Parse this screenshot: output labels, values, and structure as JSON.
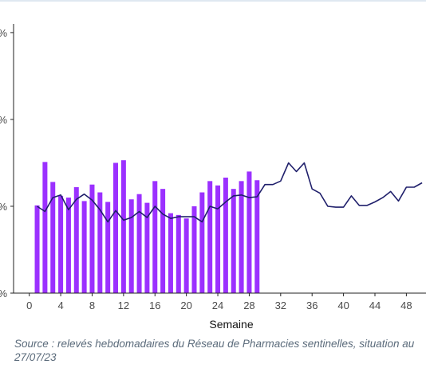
{
  "chart_data": {
    "type": "bar",
    "title": "",
    "xlabel": "Semaine",
    "ylabel": "",
    "x_ticks": [
      0,
      4,
      8,
      12,
      16,
      20,
      24,
      28,
      32,
      36,
      40,
      44,
      48
    ],
    "y_tick_labels": [
      "%",
      "%",
      "%",
      "%"
    ],
    "xlim": [
      -2,
      50.5
    ],
    "ylim": [
      0,
      3.1
    ],
    "grid": false,
    "series": [
      {
        "type": "bar",
        "color": "#9b30ff",
        "x": [
          1,
          2,
          3,
          4,
          5,
          6,
          7,
          8,
          9,
          10,
          11,
          12,
          13,
          14,
          15,
          16,
          17,
          18,
          19,
          20,
          21,
          22,
          23,
          24,
          25,
          26,
          27,
          28,
          29
        ],
        "values": [
          1.01,
          1.51,
          1.28,
          1.12,
          1.1,
          1.22,
          1.06,
          1.25,
          1.16,
          1.05,
          1.5,
          1.53,
          1.08,
          1.14,
          1.04,
          1.29,
          1.2,
          0.92,
          0.9,
          0.86,
          1.0,
          1.16,
          1.29,
          1.24,
          1.33,
          1.2,
          1.29,
          1.4,
          1.3
        ]
      },
      {
        "type": "line",
        "color": "#1f1f6b",
        "x": [
          1,
          2,
          3,
          4,
          5,
          6,
          7,
          8,
          9,
          10,
          11,
          12,
          13,
          14,
          15,
          16,
          17,
          18,
          19,
          20,
          21,
          22,
          23,
          24,
          25,
          26,
          27,
          28,
          29,
          30,
          31,
          32,
          33,
          34,
          35,
          36,
          37,
          38,
          39,
          40,
          41,
          42,
          43,
          44,
          45,
          46,
          47,
          48,
          49,
          50
        ],
        "values": [
          1.0,
          0.94,
          1.1,
          1.13,
          0.96,
          1.08,
          1.14,
          1.07,
          0.96,
          0.82,
          0.95,
          0.84,
          0.87,
          0.94,
          0.87,
          1.0,
          0.91,
          0.86,
          0.88,
          0.88,
          0.88,
          0.82,
          1.0,
          0.97,
          1.05,
          1.12,
          1.13,
          1.1,
          1.11,
          1.25,
          1.25,
          1.29,
          1.5,
          1.4,
          1.5,
          1.2,
          1.15,
          1.0,
          0.99,
          0.99,
          1.12,
          1.01,
          1.01,
          1.05,
          1.1,
          1.17,
          1.06,
          1.22,
          1.22,
          1.27
        ]
      }
    ]
  },
  "source_note": "Source :  relevés hebdomadaires du Réseau de Pharmacies sentinelles, situation au  27/07/23"
}
